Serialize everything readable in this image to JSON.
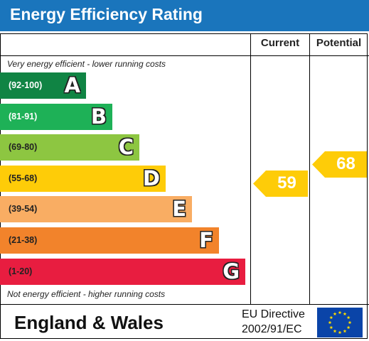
{
  "title": "Energy Efficiency Rating",
  "columns": {
    "current": "Current",
    "potential": "Potential"
  },
  "top_caption": "Very energy efficient - lower running costs",
  "bottom_caption": "Not energy efficient - higher running costs",
  "footer": {
    "region": "England & Wales",
    "directive_line1": "EU Directive",
    "directive_line2": "2002/91/EC",
    "flag": "eu-flag-icon"
  },
  "colors": {
    "header": "#1a75bc",
    "A": "#108444",
    "B": "#1eb157",
    "C": "#8dc641",
    "D": "#fecc08",
    "E": "#f9ad63",
    "F": "#f2832b",
    "G": "#e81d40",
    "flag": "#0a44a8",
    "star": "#ffdd00"
  },
  "chart_data": {
    "type": "bar",
    "title": "Energy Efficiency Rating",
    "bands": [
      {
        "letter": "A",
        "range": "(92-100)",
        "min": 92,
        "max": 100,
        "color": "#108444"
      },
      {
        "letter": "B",
        "range": "(81-91)",
        "min": 81,
        "max": 91,
        "color": "#1eb157"
      },
      {
        "letter": "C",
        "range": "(69-80)",
        "min": 69,
        "max": 80,
        "color": "#8dc641"
      },
      {
        "letter": "D",
        "range": "(55-68)",
        "min": 55,
        "max": 68,
        "color": "#fecc08"
      },
      {
        "letter": "E",
        "range": "(39-54)",
        "min": 39,
        "max": 54,
        "color": "#f9ad63"
      },
      {
        "letter": "F",
        "range": "(21-38)",
        "min": 21,
        "max": 38,
        "color": "#f2832b"
      },
      {
        "letter": "G",
        "range": "(1-20)",
        "min": 1,
        "max": 20,
        "color": "#e81d40"
      }
    ],
    "current": {
      "value": 59,
      "band": "D",
      "color": "#fecc08"
    },
    "potential": {
      "value": 68,
      "band": "D",
      "color": "#fecc08"
    }
  }
}
